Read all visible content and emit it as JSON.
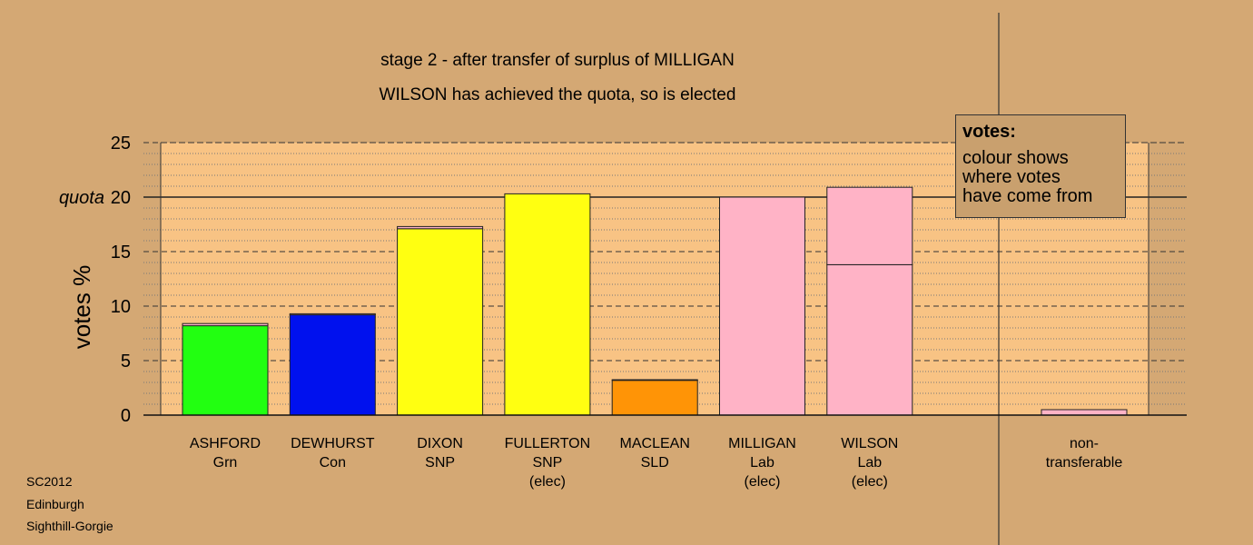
{
  "title_line1": "stage 2 - after transfer of surplus of MILLIGAN",
  "title_line2": "WILSON has achieved the quota, so is elected",
  "legend": {
    "heading": "votes:",
    "lines": [
      "colour shows",
      "where votes",
      "have come from"
    ]
  },
  "footer": [
    "SC2012",
    "Edinburgh",
    "Sighthill-Gorgie"
  ],
  "chart_data": {
    "type": "bar",
    "stacked": true,
    "ylabel": "votes %",
    "ylim": [
      0,
      25
    ],
    "yticks": [
      0,
      5,
      10,
      15,
      20,
      25
    ],
    "quota": 20,
    "quota_label": "quota",
    "grid": true,
    "candidates": [
      {
        "name": "ASHFORD",
        "party": "Grn",
        "status": "",
        "color": "#22ff11",
        "segments": [
          {
            "value": 8.2,
            "color": "#22ff11"
          },
          {
            "value": 0.2,
            "color": "#ffb3c6"
          }
        ]
      },
      {
        "name": "DEWHURST",
        "party": "Con",
        "status": "",
        "color": "#0011ee",
        "segments": [
          {
            "value": 9.2,
            "color": "#0011ee"
          },
          {
            "value": 0.1,
            "color": "#ffb3c6"
          }
        ]
      },
      {
        "name": "DIXON",
        "party": "SNP",
        "status": "",
        "color": "#ffff11",
        "segments": [
          {
            "value": 17.1,
            "color": "#ffff11"
          },
          {
            "value": 0.2,
            "color": "#ffb3c6"
          }
        ]
      },
      {
        "name": "FULLERTON",
        "party": "SNP",
        "status": "(elec)",
        "color": "#ffff11",
        "segments": [
          {
            "value": 20.3,
            "color": "#ffff11"
          }
        ]
      },
      {
        "name": "MACLEAN",
        "party": "SLD",
        "status": "",
        "color": "#ff9406",
        "segments": [
          {
            "value": 3.2,
            "color": "#ff9406"
          },
          {
            "value": 0.05,
            "color": "#ffb3c6"
          }
        ]
      },
      {
        "name": "MILLIGAN",
        "party": "Lab",
        "status": "(elec)",
        "color": "#ffb3c6",
        "segments": [
          {
            "value": 20.0,
            "color": "#ffb3c6"
          }
        ]
      },
      {
        "name": "WILSON",
        "party": "Lab",
        "status": "(elec)",
        "color": "#ffb3c6",
        "segments": [
          {
            "value": 13.8,
            "color": "#ffb3c6"
          },
          {
            "value": 7.1,
            "color": "#ffb3c6"
          }
        ]
      }
    ],
    "nontransferable": {
      "label_lines": [
        "non-",
        "transferable"
      ],
      "value": 0.5,
      "color": "#ffb3c6"
    }
  }
}
